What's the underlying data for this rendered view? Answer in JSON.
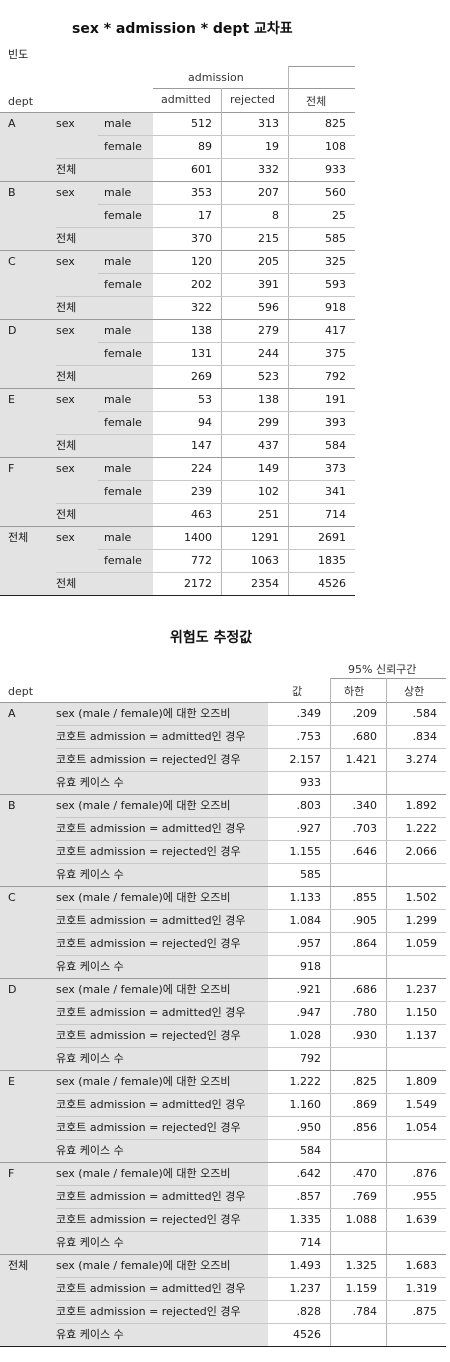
{
  "crosstab": {
    "title": "sex * admission * dept 교차표",
    "subtitle": "빈도",
    "dept_header": "dept",
    "admission_header": "admission",
    "col_admitted": "admitted",
    "col_rejected": "rejected",
    "col_total": "전체",
    "sex_label": "sex",
    "total_label": "전체",
    "groups": [
      {
        "dept": "A",
        "male": [
          "512",
          "313",
          "825"
        ],
        "female": [
          "89",
          "19",
          "108"
        ],
        "total": [
          "601",
          "332",
          "933"
        ]
      },
      {
        "dept": "B",
        "male": [
          "353",
          "207",
          "560"
        ],
        "female": [
          "17",
          "8",
          "25"
        ],
        "total": [
          "370",
          "215",
          "585"
        ]
      },
      {
        "dept": "C",
        "male": [
          "120",
          "205",
          "325"
        ],
        "female": [
          "202",
          "391",
          "593"
        ],
        "total": [
          "322",
          "596",
          "918"
        ]
      },
      {
        "dept": "D",
        "male": [
          "138",
          "279",
          "417"
        ],
        "female": [
          "131",
          "244",
          "375"
        ],
        "total": [
          "269",
          "523",
          "792"
        ]
      },
      {
        "dept": "E",
        "male": [
          "53",
          "138",
          "191"
        ],
        "female": [
          "94",
          "299",
          "393"
        ],
        "total": [
          "147",
          "437",
          "584"
        ]
      },
      {
        "dept": "F",
        "male": [
          "224",
          "149",
          "373"
        ],
        "female": [
          "239",
          "102",
          "341"
        ],
        "total": [
          "463",
          "251",
          "714"
        ]
      },
      {
        "dept": "전체",
        "male": [
          "1400",
          "1291",
          "2691"
        ],
        "female": [
          "772",
          "1063",
          "1835"
        ],
        "total": [
          "2172",
          "2354",
          "4526"
        ]
      }
    ],
    "male_label": "male",
    "female_label": "female"
  },
  "risk": {
    "title": "위험도 추정값",
    "dept_header": "dept",
    "ci_header": "95% 신뢰구간",
    "col_value": "값",
    "col_lower": "하한",
    "col_upper": "상한",
    "row_labels": [
      "sex (male / female)에 대한 오즈비",
      "코호트 admission = admitted인 경우",
      "코호트 admission = rejected인 경우",
      "유효 케이스 수"
    ],
    "groups": [
      {
        "dept": "A",
        "rows": [
          [
            ".349",
            ".209",
            ".584"
          ],
          [
            ".753",
            ".680",
            ".834"
          ],
          [
            "2.157",
            "1.421",
            "3.274"
          ],
          [
            "933",
            "",
            ""
          ]
        ]
      },
      {
        "dept": "B",
        "rows": [
          [
            ".803",
            ".340",
            "1.892"
          ],
          [
            ".927",
            ".703",
            "1.222"
          ],
          [
            "1.155",
            ".646",
            "2.066"
          ],
          [
            "585",
            "",
            ""
          ]
        ]
      },
      {
        "dept": "C",
        "rows": [
          [
            "1.133",
            ".855",
            "1.502"
          ],
          [
            "1.084",
            ".905",
            "1.299"
          ],
          [
            ".957",
            ".864",
            "1.059"
          ],
          [
            "918",
            "",
            ""
          ]
        ]
      },
      {
        "dept": "D",
        "rows": [
          [
            ".921",
            ".686",
            "1.237"
          ],
          [
            ".947",
            ".780",
            "1.150"
          ],
          [
            "1.028",
            ".930",
            "1.137"
          ],
          [
            "792",
            "",
            ""
          ]
        ]
      },
      {
        "dept": "E",
        "rows": [
          [
            "1.222",
            ".825",
            "1.809"
          ],
          [
            "1.160",
            ".869",
            "1.549"
          ],
          [
            ".950",
            ".856",
            "1.054"
          ],
          [
            "584",
            "",
            ""
          ]
        ]
      },
      {
        "dept": "F",
        "rows": [
          [
            ".642",
            ".470",
            ".876"
          ],
          [
            ".857",
            ".769",
            ".955"
          ],
          [
            "1.335",
            "1.088",
            "1.639"
          ],
          [
            "714",
            "",
            ""
          ]
        ]
      },
      {
        "dept": "전체",
        "rows": [
          [
            "1.493",
            "1.325",
            "1.683"
          ],
          [
            "1.237",
            "1.159",
            "1.319"
          ],
          [
            ".828",
            ".784",
            ".875"
          ],
          [
            "4526",
            "",
            ""
          ]
        ]
      }
    ]
  }
}
